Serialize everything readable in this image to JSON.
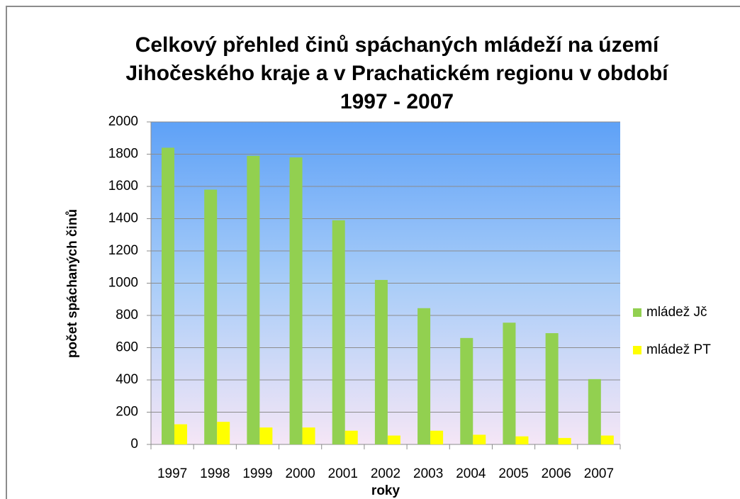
{
  "chart_data": {
    "type": "bar",
    "title": [
      "Celkový přehled  činů  spáchaných mládeží na území",
      "Jihočeského kraje a v Prachatickém regionu v období",
      "1997 - 2007"
    ],
    "x_label": "roky",
    "y_label": "počet spáchaných činů",
    "categories": [
      "1997",
      "1998",
      "1999",
      "2000",
      "2001",
      "2002",
      "2003",
      "2004",
      "2005",
      "2006",
      "2007"
    ],
    "series": [
      {
        "name": "mládež Jč",
        "color": "#92d050",
        "values": [
          1840,
          1580,
          1790,
          1780,
          1390,
          1020,
          845,
          660,
          755,
          690,
          405
        ]
      },
      {
        "name": "mládež PT",
        "color": "#ffff00",
        "values": [
          125,
          140,
          105,
          105,
          85,
          55,
          85,
          60,
          50,
          40,
          55
        ]
      }
    ],
    "ylim": [
      0,
      2000
    ],
    "yticks": [
      0,
      200,
      400,
      600,
      800,
      1000,
      1200,
      1400,
      1600,
      1800,
      2000
    ],
    "grid": true,
    "legend": "right"
  }
}
